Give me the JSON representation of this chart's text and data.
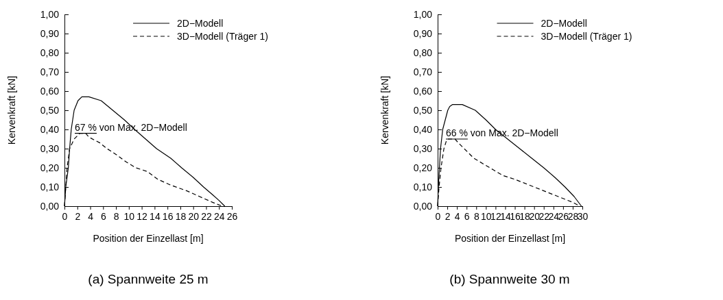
{
  "chart_data": [
    {
      "type": "line",
      "title": "(a) Spannweite 25 m",
      "xlabel": "Position der Einzellast [m]",
      "ylabel": "Kervenkraft [kN]",
      "xlim": [
        0,
        26
      ],
      "xticks": [
        0,
        2,
        4,
        6,
        8,
        10,
        12,
        14,
        16,
        18,
        20,
        22,
        24,
        26
      ],
      "ylim": [
        0,
        1
      ],
      "yticks": [
        {
          "value": 0,
          "label": "0,00"
        },
        {
          "value": 0.1,
          "label": "0,10"
        },
        {
          "value": 0.2,
          "label": "0,20"
        },
        {
          "value": 0.3,
          "label": "0,30"
        },
        {
          "value": 0.4,
          "label": "0,40"
        },
        {
          "value": 0.5,
          "label": "0,50"
        },
        {
          "value": 0.6,
          "label": "0,60"
        },
        {
          "value": 0.7,
          "label": "0,70"
        },
        {
          "value": 0.8,
          "label": "0,80"
        },
        {
          "value": 0.9,
          "label": "0,90"
        },
        {
          "value": 1,
          "label": "1,00"
        }
      ],
      "legend": "top right",
      "marker": "none",
      "series": [
        {
          "name": "2D−Modell",
          "color": "#000000",
          "line_style": "solid",
          "x": [
            0,
            0.2,
            0.6,
            0.8,
            1.05,
            1.5,
            2.1,
            2.7,
            3.8,
            5.7,
            7.5,
            9.3,
            10.9,
            12.6,
            14.3,
            16.5,
            18.2,
            20,
            21.6,
            23,
            24,
            24.9
          ],
          "values": [
            0,
            0.1,
            0.2,
            0.3,
            0.4,
            0.5,
            0.55,
            0.57,
            0.57,
            0.55,
            0.5,
            0.45,
            0.4,
            0.35,
            0.3,
            0.25,
            0.2,
            0.15,
            0.1,
            0.06,
            0.03,
            0
          ]
        },
        {
          "name": "3D−Modell (Träger 1)",
          "color": "#000000",
          "line_style": "dashed",
          "x": [
            0,
            0.2,
            0.4,
            0.8,
            1.5,
            2.1,
            2.4,
            3.3,
            3.8,
            5.5,
            6.6,
            8,
            9.6,
            11.1,
            12.9,
            14.5,
            16.5,
            19,
            21,
            23,
            24.5
          ],
          "values": [
            0,
            0.1,
            0.2,
            0.3,
            0.35,
            0.37,
            0.38,
            0.38,
            0.36,
            0.33,
            0.3,
            0.27,
            0.23,
            0.2,
            0.18,
            0.14,
            0.11,
            0.08,
            0.05,
            0.02,
            0
          ]
        }
      ],
      "annotations": [
        {
          "text": "67 % von Max. 2D−Modell",
          "x": 1.6,
          "y": 0.38
        }
      ]
    },
    {
      "type": "line",
      "title": "(b) Spannweite 30 m",
      "xlabel": "Position der Einzellast [m]",
      "ylabel": "Kervenkraft [kN]",
      "xlim": [
        0,
        30
      ],
      "xticks": [
        0,
        2,
        4,
        6,
        8,
        10,
        12,
        14,
        16,
        18,
        20,
        22,
        24,
        26,
        28,
        30
      ],
      "ylim": [
        0,
        1
      ],
      "yticks": [
        {
          "value": 0,
          "label": "0,00"
        },
        {
          "value": 0.1,
          "label": "0,10"
        },
        {
          "value": 0.2,
          "label": "0,20"
        },
        {
          "value": 0.3,
          "label": "0,30"
        },
        {
          "value": 0.4,
          "label": "0,40"
        },
        {
          "value": 0.5,
          "label": "0,50"
        },
        {
          "value": 0.6,
          "label": "0,60"
        },
        {
          "value": 0.7,
          "label": "0,70"
        },
        {
          "value": 0.8,
          "label": "0,80"
        },
        {
          "value": 0.9,
          "label": "0,90"
        },
        {
          "value": 1,
          "label": "1,00"
        }
      ],
      "legend": "top right",
      "marker": "none",
      "series": [
        {
          "name": "2D−Modell",
          "color": "#000000",
          "line_style": "solid",
          "x": [
            0,
            0.15,
            0.6,
            1.05,
            2.1,
            2.5,
            3.1,
            5.1,
            7.8,
            10,
            12,
            14.5,
            17,
            19.5,
            22,
            24.3,
            26.4,
            28.3,
            29.8
          ],
          "values": [
            0,
            0.1,
            0.3,
            0.4,
            0.5,
            0.52,
            0.53,
            0.53,
            0.5,
            0.45,
            0.4,
            0.35,
            0.3,
            0.25,
            0.2,
            0.15,
            0.1,
            0.05,
            0
          ]
        },
        {
          "name": "3D−Modell (Träger 1)",
          "color": "#000000",
          "line_style": "dashed",
          "x": [
            0,
            0.3,
            0.7,
            1.3,
            1.8,
            2.1,
            3.6,
            4.3,
            5.5,
            7.5,
            9.5,
            11.5,
            13.5,
            16,
            18,
            20,
            22,
            24,
            26,
            28,
            29.5
          ],
          "values": [
            0,
            0.1,
            0.2,
            0.3,
            0.34,
            0.35,
            0.35,
            0.33,
            0.3,
            0.25,
            0.22,
            0.19,
            0.16,
            0.14,
            0.12,
            0.1,
            0.08,
            0.06,
            0.04,
            0.02,
            0
          ]
        }
      ],
      "annotations": [
        {
          "text": "66 % von Max. 2D−Modell",
          "x": 1.7,
          "y": 0.35
        }
      ]
    }
  ]
}
